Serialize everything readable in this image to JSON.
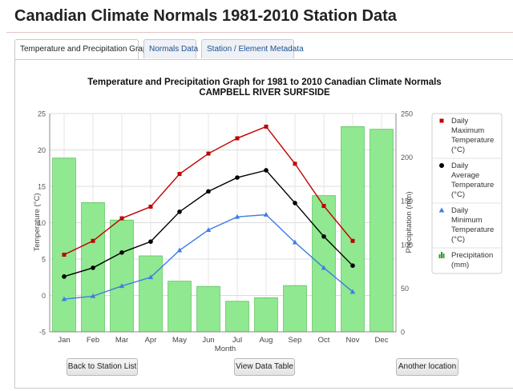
{
  "page": {
    "title": "Canadian Climate Normals 1981-2010 Station Data"
  },
  "tabs": [
    {
      "label": "Temperature and Precipitation Graph",
      "active": true
    },
    {
      "label": "Normals Data",
      "active": false
    },
    {
      "label": "Station / Element Metadata",
      "active": false
    }
  ],
  "buttons": {
    "back": "Back to Station List",
    "view_table": "View Data Table",
    "another": "Another location"
  },
  "chart_data": {
    "type": "bar+line",
    "title": "Temperature and Precipitation Graph for 1981 to 2010 Canadian Climate Normals",
    "subtitle": "CAMPBELL RIVER SURFSIDE",
    "xlabel": "Month",
    "ylabel_left": "Temperature (°C)",
    "ylabel_right": "Precipitation (mm)",
    "categories": [
      "Jan",
      "Feb",
      "Mar",
      "Apr",
      "May",
      "Jun",
      "Jul",
      "Aug",
      "Sep",
      "Oct",
      "Nov",
      "Dec"
    ],
    "ylim_left": [
      -5,
      25
    ],
    "yticks_left": [
      -5,
      0,
      5,
      10,
      15,
      20,
      25
    ],
    "ylim_right": [
      0,
      250
    ],
    "yticks_right": [
      0,
      50,
      100,
      150,
      200,
      250
    ],
    "grid": true,
    "legend_position": "right",
    "series": [
      {
        "name": "Daily Maximum Temperature (°C)",
        "legend": [
          "Daily",
          "Maximum",
          "Temperature",
          "(°C)"
        ],
        "kind": "line",
        "axis": "left",
        "color": "#c00000",
        "marker": "square",
        "values": [
          5.6,
          7.5,
          10.6,
          12.2,
          16.7,
          19.5,
          21.6,
          23.2,
          18.1,
          12.3,
          7.5,
          null
        ]
      },
      {
        "name": "Daily Average Temperature (°C)",
        "legend": [
          "Daily",
          "Average",
          "Temperature",
          "(°C)"
        ],
        "kind": "line",
        "axis": "left",
        "color": "#000000",
        "marker": "circle",
        "values": [
          2.6,
          3.8,
          5.9,
          7.4,
          11.5,
          14.3,
          16.2,
          17.2,
          12.7,
          8.1,
          4.1,
          null
        ]
      },
      {
        "name": "Daily Minimum Temperature (°C)",
        "legend": [
          "Daily",
          "Minimum",
          "Temperature",
          "(°C)"
        ],
        "kind": "line",
        "axis": "left",
        "color": "#3e7de6",
        "marker": "triangle",
        "values": [
          -0.5,
          -0.1,
          1.3,
          2.5,
          6.2,
          9.0,
          10.8,
          11.1,
          7.3,
          3.8,
          0.5,
          null
        ]
      },
      {
        "name": "Precipitation (mm)",
        "legend": [
          "Precipitation",
          "(mm)"
        ],
        "kind": "bar",
        "axis": "right",
        "color": "#90e890",
        "marker": "bar",
        "values": [
          199,
          148,
          128,
          87,
          58,
          52,
          35,
          39,
          53,
          156,
          235,
          232
        ]
      }
    ]
  }
}
